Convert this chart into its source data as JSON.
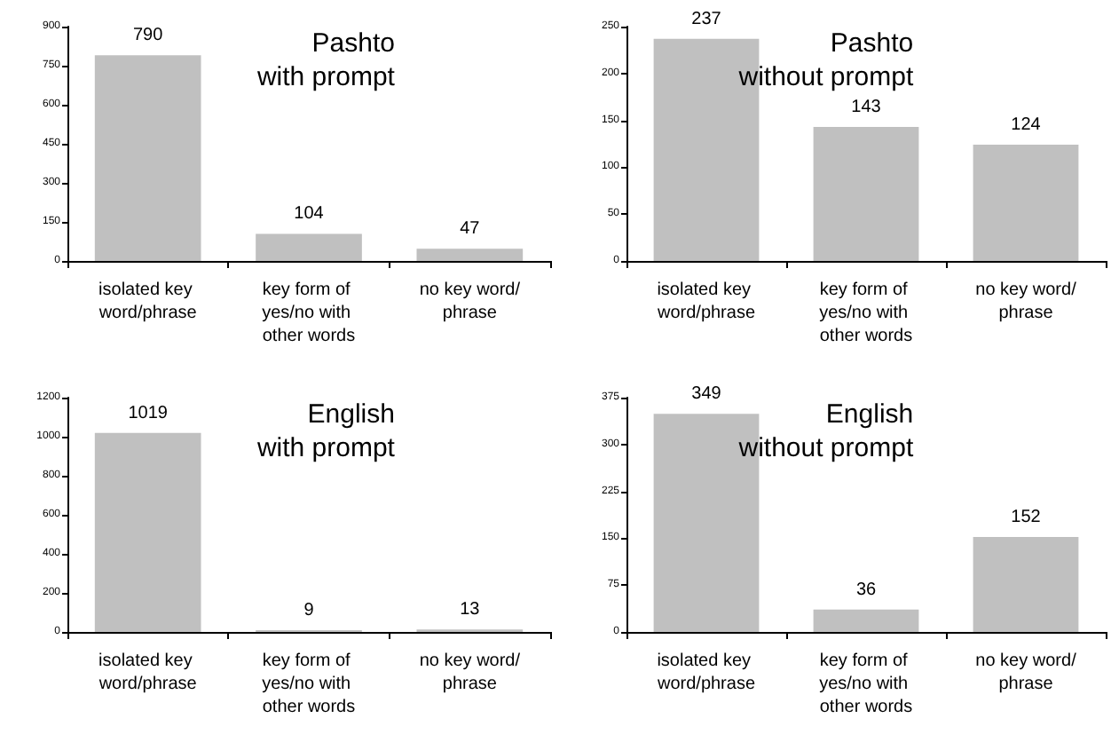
{
  "chart_data": [
    {
      "type": "bar",
      "title": "Pashto\nwith prompt",
      "categories": [
        "isolated key word/phrase",
        "key form of yes/no with other words",
        "no key word/phrase"
      ],
      "values": [
        790,
        104,
        47
      ],
      "color": "#c0c0c0",
      "ylim": [
        0,
        900
      ],
      "yticks": [
        0,
        150,
        300,
        450,
        600,
        750,
        900
      ],
      "grid": false,
      "data_labels": true
    },
    {
      "type": "bar",
      "title": "Pashto\nwithout prompt",
      "categories": [
        "isolated key word/phrase",
        "key form of yes/no with other words",
        "no key word/phrase"
      ],
      "values": [
        237,
        143,
        124
      ],
      "color": "#c0c0c0",
      "ylim": [
        0,
        250
      ],
      "yticks": [
        0,
        50,
        100,
        150,
        200,
        250
      ],
      "grid": false,
      "data_labels": true
    },
    {
      "type": "bar",
      "title": "English\nwith prompt",
      "categories": [
        "isolated key word/phrase",
        "key form of yes/no with other words",
        "no key word/phrase"
      ],
      "values": [
        1019,
        9,
        13
      ],
      "color": "#c0c0c0",
      "ylim": [
        0,
        1200
      ],
      "yticks": [
        0,
        200,
        400,
        600,
        800,
        1000,
        1200
      ],
      "grid": false,
      "data_labels": true
    },
    {
      "type": "bar",
      "title": "English\nwithout prompt",
      "categories": [
        "isolated key word/phrase",
        "key form of yes/no with other words",
        "no key word/phrase"
      ],
      "values": [
        349,
        36,
        152
      ],
      "color": "#c0c0c0",
      "ylim": [
        0,
        375
      ],
      "yticks": [
        0,
        75,
        150,
        225,
        300,
        375
      ],
      "grid": false,
      "data_labels": true
    }
  ]
}
